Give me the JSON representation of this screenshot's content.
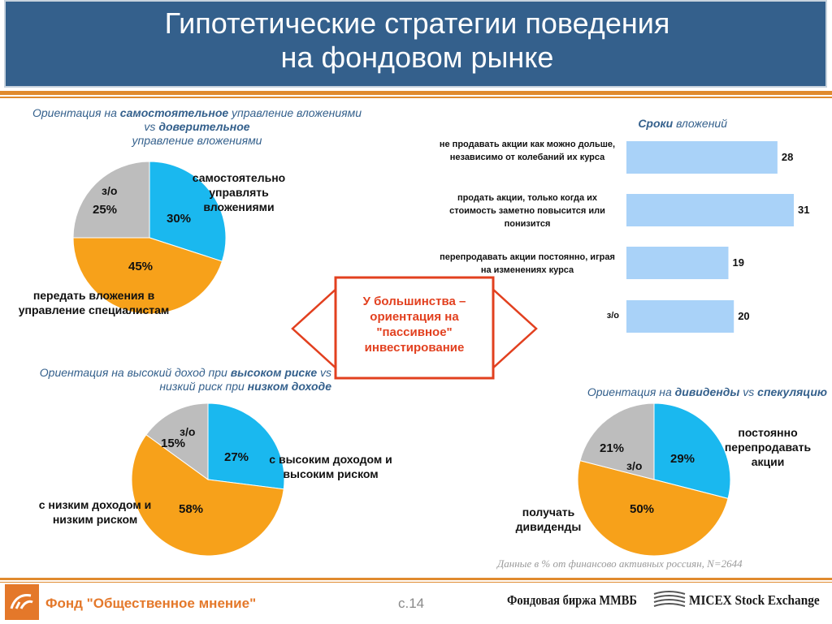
{
  "title": {
    "line1": "Гипотетические стратегии поведения",
    "line2": "на фондовом рынке"
  },
  "callout": {
    "text": "У большинства – ориентация на \"пассивное\" инвестирование"
  },
  "note": "Данные в % от финансово активных россиян, N=2644",
  "footer": {
    "org": "Фонд \"Общественное мнение\"",
    "page": "с.14",
    "exchange1": "Фондовая биржа ММВБ",
    "exchange2": "MICEX Stock Exchange"
  },
  "colors": {
    "blue": "#1ab8ef",
    "orange": "#f7a11a",
    "gray": "#bdbdbd",
    "bar": "#a9d2f8",
    "accent": "#e4782a",
    "header": "#34608c"
  },
  "chart_data": [
    {
      "type": "pie",
      "title_parts": [
        "Ориентация на ",
        "самостоятельное",
        " управление вложениями vs ",
        "доверительное",
        " управление  вложениями"
      ],
      "slices": [
        {
          "label": "самостоятельно управлять вложениями",
          "value": 30,
          "text": "30%",
          "color": "#1ab8ef"
        },
        {
          "label": "передать вложения в управление специалистам",
          "value": 45,
          "text": "45%",
          "color": "#f7a11a"
        },
        {
          "label": "з/о",
          "value": 25,
          "text": "25%",
          "color": "#bdbdbd"
        }
      ]
    },
    {
      "type": "pie",
      "title_parts": [
        "Ориентация на высокий доход при ",
        "высоком риске",
        " vs низкий риск при ",
        "низком доходе"
      ],
      "slices": [
        {
          "label": "с высоким доходом и высоким риском",
          "value": 27,
          "text": "27%",
          "color": "#1ab8ef"
        },
        {
          "label": "с низким доходом и низким риском",
          "value": 58,
          "text": "58%",
          "color": "#f7a11a"
        },
        {
          "label": "з/о",
          "value": 15,
          "text": "15%",
          "color": "#bdbdbd"
        }
      ]
    },
    {
      "type": "pie",
      "title_parts": [
        "Ориентация на ",
        "дивиденды",
        " vs ",
        "спекуляцию"
      ],
      "slices": [
        {
          "label": "постоянно перепродавать акции",
          "value": 29,
          "text": "29%",
          "color": "#1ab8ef"
        },
        {
          "label": "получать дивиденды",
          "value": 50,
          "text": "50%",
          "color": "#f7a11a"
        },
        {
          "label": "з/о",
          "value": 21,
          "text": "21%",
          "color": "#bdbdbd"
        }
      ]
    },
    {
      "type": "bar",
      "orientation": "horizontal",
      "title_parts": [
        "Сроки",
        " вложений"
      ],
      "categories": [
        "не продавать акции как можно дольше, независимо от колебаний их курса",
        "продать акции, только когда их стоимость заметно повысится или понизится",
        "перепродавать акции постоянно, играя на изменениях курса",
        "з/о"
      ],
      "values": [
        28,
        31,
        19,
        20
      ],
      "xlim": [
        0,
        31
      ]
    }
  ]
}
